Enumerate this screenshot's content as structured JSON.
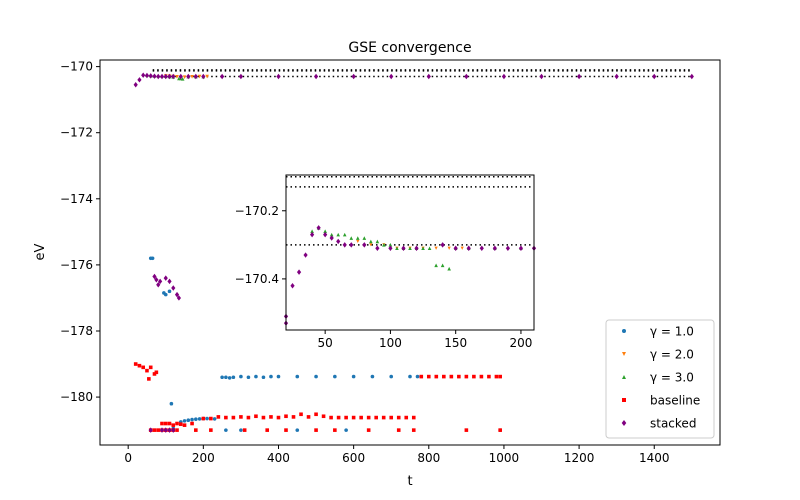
{
  "chart_data": {
    "type": "scatter",
    "title": "GSE convergence",
    "xlabel": "t",
    "ylabel": "eV",
    "xlim": [
      -75,
      1575
    ],
    "ylim": [
      -181.45,
      -169.8
    ],
    "xticks": [
      0,
      200,
      400,
      600,
      800,
      1000,
      1200,
      1400
    ],
    "yticks": [
      -180,
      -178,
      -176,
      -174,
      -172,
      -170
    ],
    "xtick_labels": [
      "0",
      "200",
      "400",
      "600",
      "800",
      "1000",
      "1200",
      "1400"
    ],
    "ytick_labels": [
      "−180",
      "−178",
      "−176",
      "−174",
      "−172",
      "−170"
    ],
    "grid": false,
    "legend_position": "lower-right",
    "reference_lines": [
      -170.1,
      -170.13,
      -170.3
    ],
    "series": [
      {
        "name": "γ = 1.0",
        "legend_label": "γ = 1.0",
        "color": "#1f77b4",
        "marker": "circle",
        "points": [
          [
            60,
            -175.8
          ],
          [
            65,
            -175.8
          ],
          [
            95,
            -176.85
          ],
          [
            100,
            -176.9
          ],
          [
            110,
            -176.8
          ],
          [
            115,
            -180.2
          ],
          [
            120,
            -180.95
          ],
          [
            140,
            -180.75
          ],
          [
            150,
            -180.72
          ],
          [
            160,
            -180.7
          ],
          [
            170,
            -180.68
          ],
          [
            180,
            -180.67
          ],
          [
            190,
            -180.66
          ],
          [
            200,
            -180.65
          ],
          [
            210,
            -180.65
          ],
          [
            230,
            -180.66
          ],
          [
            250,
            -179.4
          ],
          [
            260,
            -179.4
          ],
          [
            270,
            -179.42
          ],
          [
            280,
            -179.4
          ],
          [
            300,
            -179.38
          ],
          [
            320,
            -179.4
          ],
          [
            340,
            -179.38
          ],
          [
            360,
            -179.4
          ],
          [
            380,
            -179.38
          ],
          [
            400,
            -179.38
          ],
          [
            450,
            -179.38
          ],
          [
            500,
            -179.38
          ],
          [
            550,
            -179.38
          ],
          [
            600,
            -179.38
          ],
          [
            650,
            -179.38
          ],
          [
            700,
            -179.38
          ],
          [
            750,
            -179.38
          ],
          [
            770,
            -179.38
          ],
          [
            260,
            -181.0
          ],
          [
            300,
            -181.0
          ],
          [
            450,
            -181.0
          ],
          [
            580,
            -181.0
          ],
          [
            990,
            -181.0
          ]
        ]
      },
      {
        "name": "γ = 2.0",
        "legend_label": "γ = 2.0",
        "color": "#ff7f0e",
        "marker": "triangle-down",
        "points": [
          [
            100,
            -170.28
          ],
          [
            110,
            -170.29
          ],
          [
            120,
            -170.3
          ],
          [
            130,
            -170.31
          ],
          [
            150,
            -170.32
          ],
          [
            170,
            -170.31
          ],
          [
            190,
            -170.3
          ],
          [
            210,
            -170.3
          ]
        ]
      },
      {
        "name": "γ = 3.0",
        "legend_label": "γ = 3.0",
        "color": "#2ca02c",
        "marker": "triangle-up",
        "points": [
          [
            50,
            -170.26
          ],
          [
            60,
            -170.27
          ],
          [
            70,
            -170.28
          ],
          [
            80,
            -170.28
          ],
          [
            90,
            -170.29
          ],
          [
            100,
            -170.29
          ],
          [
            110,
            -170.3
          ],
          [
            120,
            -170.31
          ],
          [
            135,
            -170.36
          ],
          [
            140,
            -170.36
          ],
          [
            145,
            -170.37
          ],
          [
            160,
            -170.3
          ],
          [
            180,
            -170.3
          ],
          [
            200,
            -170.3
          ]
        ]
      },
      {
        "name": "baseline",
        "legend_label": "baseline",
        "color": "#ff0000",
        "marker": "square",
        "points": [
          [
            20,
            -179.0
          ],
          [
            30,
            -179.05
          ],
          [
            40,
            -179.1
          ],
          [
            50,
            -179.2
          ],
          [
            55,
            -179.45
          ],
          [
            60,
            -179.1
          ],
          [
            70,
            -179.3
          ],
          [
            75,
            -179.25
          ],
          [
            60,
            -181.0
          ],
          [
            70,
            -181.0
          ],
          [
            80,
            -181.0
          ],
          [
            90,
            -181.0
          ],
          [
            100,
            -181.0
          ],
          [
            110,
            -181.0
          ],
          [
            120,
            -181.0
          ],
          [
            130,
            -181.0
          ],
          [
            90,
            -180.8
          ],
          [
            100,
            -180.8
          ],
          [
            110,
            -180.8
          ],
          [
            120,
            -180.85
          ],
          [
            130,
            -180.8
          ],
          [
            140,
            -180.82
          ],
          [
            150,
            -180.85
          ],
          [
            170,
            -180.8
          ],
          [
            200,
            -180.65
          ],
          [
            220,
            -180.65
          ],
          [
            240,
            -180.6
          ],
          [
            260,
            -180.62
          ],
          [
            280,
            -180.62
          ],
          [
            300,
            -180.6
          ],
          [
            320,
            -180.62
          ],
          [
            340,
            -180.58
          ],
          [
            360,
            -180.62
          ],
          [
            380,
            -180.6
          ],
          [
            400,
            -180.62
          ],
          [
            420,
            -180.58
          ],
          [
            440,
            -180.6
          ],
          [
            460,
            -180.52
          ],
          [
            480,
            -180.6
          ],
          [
            500,
            -180.52
          ],
          [
            520,
            -180.58
          ],
          [
            540,
            -180.62
          ],
          [
            560,
            -180.62
          ],
          [
            580,
            -180.62
          ],
          [
            600,
            -180.62
          ],
          [
            620,
            -180.62
          ],
          [
            640,
            -180.62
          ],
          [
            660,
            -180.62
          ],
          [
            680,
            -180.62
          ],
          [
            700,
            -180.62
          ],
          [
            720,
            -180.62
          ],
          [
            740,
            -180.62
          ],
          [
            760,
            -180.62
          ],
          [
            180,
            -181.0
          ],
          [
            220,
            -181.0
          ],
          [
            310,
            -181.0
          ],
          [
            370,
            -181.0
          ],
          [
            420,
            -181.0
          ],
          [
            500,
            -181.0
          ],
          [
            550,
            -181.0
          ],
          [
            640,
            -181.0
          ],
          [
            720,
            -181.0
          ],
          [
            760,
            -181.0
          ],
          [
            900,
            -181.0
          ],
          [
            990,
            -181.0
          ],
          [
            780,
            -179.38
          ],
          [
            800,
            -179.38
          ],
          [
            820,
            -179.38
          ],
          [
            840,
            -179.38
          ],
          [
            860,
            -179.38
          ],
          [
            880,
            -179.38
          ],
          [
            900,
            -179.38
          ],
          [
            920,
            -179.38
          ],
          [
            940,
            -179.38
          ],
          [
            960,
            -179.38
          ],
          [
            980,
            -179.38
          ],
          [
            990,
            -179.38
          ]
        ]
      },
      {
        "name": "stacked",
        "legend_label": "stacked",
        "color": "#800080",
        "marker": "diamond",
        "points": [
          [
            20,
            -170.55
          ],
          [
            30,
            -170.4
          ],
          [
            40,
            -170.26
          ],
          [
            50,
            -170.27
          ],
          [
            60,
            -170.28
          ],
          [
            70,
            -170.29
          ],
          [
            80,
            -170.3
          ],
          [
            90,
            -170.3
          ],
          [
            100,
            -170.3
          ],
          [
            110,
            -170.3
          ],
          [
            120,
            -170.3
          ],
          [
            140,
            -170.3
          ],
          [
            160,
            -170.3
          ],
          [
            180,
            -170.3
          ],
          [
            200,
            -170.3
          ],
          [
            250,
            -170.3
          ],
          [
            300,
            -170.3
          ],
          [
            400,
            -170.3
          ],
          [
            500,
            -170.3
          ],
          [
            600,
            -170.3
          ],
          [
            700,
            -170.3
          ],
          [
            800,
            -170.3
          ],
          [
            900,
            -170.3
          ],
          [
            1000,
            -170.3
          ],
          [
            1100,
            -170.3
          ],
          [
            1200,
            -170.3
          ],
          [
            1300,
            -170.3
          ],
          [
            1400,
            -170.3
          ],
          [
            1500,
            -170.3
          ],
          [
            70,
            -176.35
          ],
          [
            75,
            -176.45
          ],
          [
            80,
            -176.6
          ],
          [
            85,
            -176.5
          ],
          [
            100,
            -176.4
          ],
          [
            110,
            -176.5
          ],
          [
            120,
            -176.7
          ],
          [
            130,
            -176.9
          ],
          [
            135,
            -177.0
          ],
          [
            60,
            -181.0
          ],
          [
            90,
            -181.0
          ],
          [
            100,
            -181.0
          ],
          [
            110,
            -181.0
          ],
          [
            120,
            -181.0
          ]
        ]
      }
    ],
    "inset": {
      "xlim": [
        20,
        210
      ],
      "ylim": [
        -170.55,
        -170.095
      ],
      "xticks": [
        50,
        100,
        150,
        200
      ],
      "yticks": [
        -170.4,
        -170.2
      ],
      "xtick_labels": [
        "50",
        "100",
        "150",
        "200"
      ],
      "ytick_labels": [
        "−170.4",
        "−170.2"
      ],
      "reference_lines": [
        -170.1,
        -170.13,
        -170.3
      ],
      "stacked_points": [
        [
          20,
          -170.51
        ],
        [
          20,
          -170.53
        ],
        [
          25,
          -170.42
        ],
        [
          30,
          -170.38
        ],
        [
          35,
          -170.33
        ],
        [
          40,
          -170.27
        ],
        [
          45,
          -170.25
        ],
        [
          50,
          -170.27
        ],
        [
          55,
          -170.28
        ],
        [
          60,
          -170.29
        ],
        [
          65,
          -170.3
        ],
        [
          70,
          -170.3
        ],
        [
          80,
          -170.3
        ],
        [
          90,
          -170.31
        ],
        [
          100,
          -170.31
        ],
        [
          110,
          -170.31
        ],
        [
          120,
          -170.31
        ],
        [
          140,
          -170.3
        ],
        [
          150,
          -170.31
        ],
        [
          160,
          -170.31
        ],
        [
          170,
          -170.31
        ],
        [
          180,
          -170.31
        ],
        [
          190,
          -170.31
        ],
        [
          200,
          -170.31
        ],
        [
          210,
          -170.31
        ]
      ],
      "gamma3_points": [
        [
          40,
          -170.26
        ],
        [
          45,
          -170.25
        ],
        [
          50,
          -170.26
        ],
        [
          55,
          -170.27
        ],
        [
          60,
          -170.27
        ],
        [
          65,
          -170.27
        ],
        [
          70,
          -170.28
        ],
        [
          75,
          -170.28
        ],
        [
          80,
          -170.28
        ],
        [
          85,
          -170.29
        ],
        [
          90,
          -170.29
        ],
        [
          95,
          -170.3
        ],
        [
          100,
          -170.3
        ],
        [
          105,
          -170.31
        ],
        [
          110,
          -170.31
        ],
        [
          115,
          -170.31
        ],
        [
          120,
          -170.31
        ],
        [
          125,
          -170.31
        ],
        [
          130,
          -170.31
        ],
        [
          135,
          -170.36
        ],
        [
          140,
          -170.36
        ],
        [
          145,
          -170.37
        ],
        [
          150,
          -170.31
        ],
        [
          160,
          -170.31
        ],
        [
          180,
          -170.31
        ],
        [
          200,
          -170.31
        ]
      ],
      "gamma2_points": [
        [
          75,
          -170.29
        ],
        [
          85,
          -170.3
        ],
        [
          95,
          -170.3
        ],
        [
          105,
          -170.31
        ],
        [
          115,
          -170.31
        ],
        [
          125,
          -170.31
        ],
        [
          135,
          -170.31
        ],
        [
          145,
          -170.31
        ],
        [
          155,
          -170.31
        ]
      ]
    }
  }
}
